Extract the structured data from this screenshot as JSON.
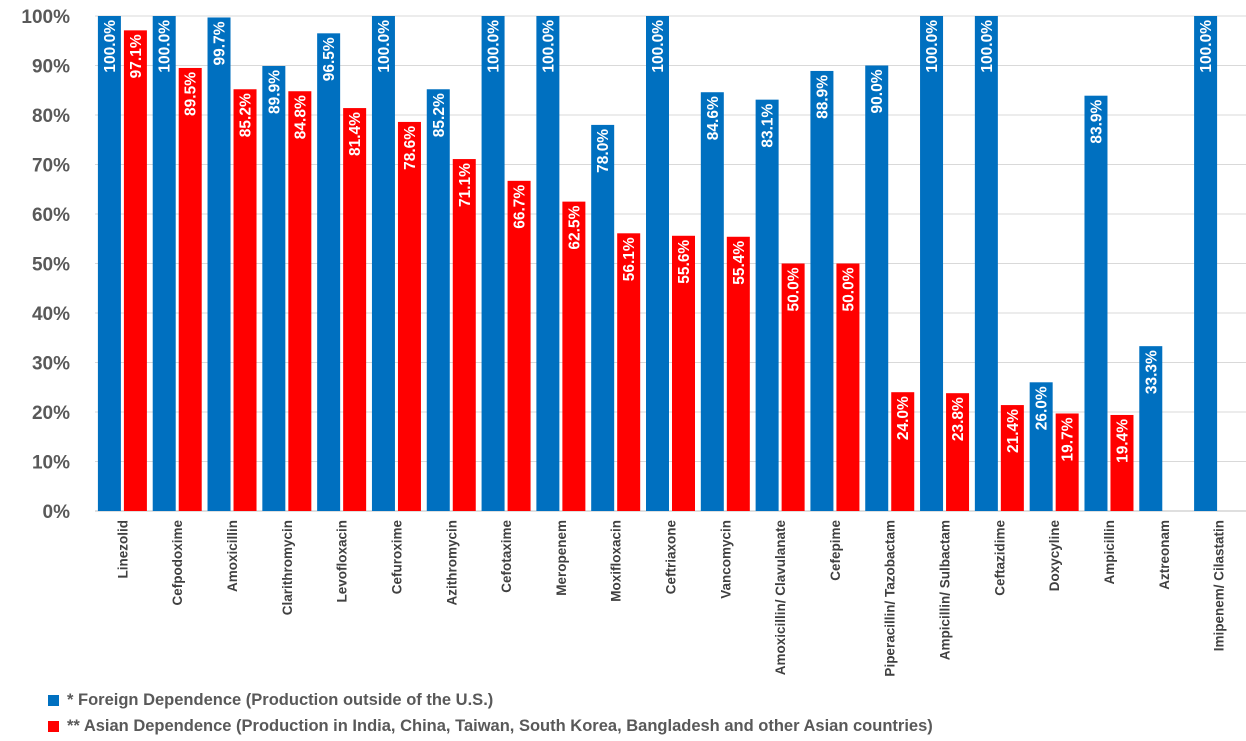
{
  "chart_data": {
    "type": "bar",
    "categories": [
      "Linezolid",
      "Cefpodoxime",
      "Amoxicillin",
      "Clarithromycin",
      "Levofloxacin",
      "Cefuroxime",
      "Azithromycin",
      "Cefotaxime",
      "Meropenem",
      "Moxifloxacin",
      "Ceftriaxone",
      "Vancomycin",
      "Amoxicillin/ Clavulanate",
      "Cefepime",
      "Piperacillin/ Tazobactam",
      "Ampicillin/ Sulbactam",
      "Ceftazidime",
      "Doxycyline",
      "Ampicillin",
      "Aztreonam",
      "Imipenem/ Cilastatin"
    ],
    "series": [
      {
        "name": "* Foreign Dependence (Production outside of the U.S.)",
        "color": "#0070C0",
        "values": [
          100.0,
          100.0,
          99.7,
          89.9,
          96.5,
          100.0,
          85.2,
          100.0,
          100.0,
          78.0,
          100.0,
          84.6,
          83.1,
          88.9,
          90.0,
          100.0,
          100.0,
          26.0,
          83.9,
          33.3,
          100.0
        ],
        "labels": [
          "100.0%",
          "100.0%",
          "99.7%",
          "89.9%",
          "96.5%",
          "100.0%",
          "85.2%",
          "100.0%",
          "100.0%",
          "78.0%",
          "100.0%",
          "84.6%",
          "83.1%",
          "88.9%",
          "90.0%",
          "100.0%",
          "100.0%",
          "26.0%",
          "83.9%",
          "33.3%",
          "100.0%"
        ]
      },
      {
        "name": "** Asian Dependence (Production in India, China, Taiwan, South Korea, Bangladesh and other Asian countries)",
        "color": "#FF0000",
        "values": [
          97.1,
          89.5,
          85.2,
          84.8,
          81.4,
          78.6,
          71.1,
          66.7,
          62.5,
          56.1,
          55.6,
          55.4,
          50.0,
          50.0,
          24.0,
          23.8,
          21.4,
          19.7,
          19.4,
          null,
          null
        ],
        "labels": [
          "97.1%",
          "89.5%",
          "85.2%",
          "84.8%",
          "81.4%",
          "78.6%",
          "71.1%",
          "66.7%",
          "62.5%",
          "56.1%",
          "55.6%",
          "55.4%",
          "50.0%",
          "50.0%",
          "24.0%",
          "23.8%",
          "21.4%",
          "19.7%",
          "19.4%",
          null,
          null
        ]
      }
    ],
    "yticks": [
      "0%",
      "10%",
      "20%",
      "30%",
      "40%",
      "50%",
      "60%",
      "70%",
      "80%",
      "90%",
      "100%"
    ],
    "ylim": [
      0,
      100
    ],
    "grid": true,
    "legend_position": "bottom-left"
  }
}
